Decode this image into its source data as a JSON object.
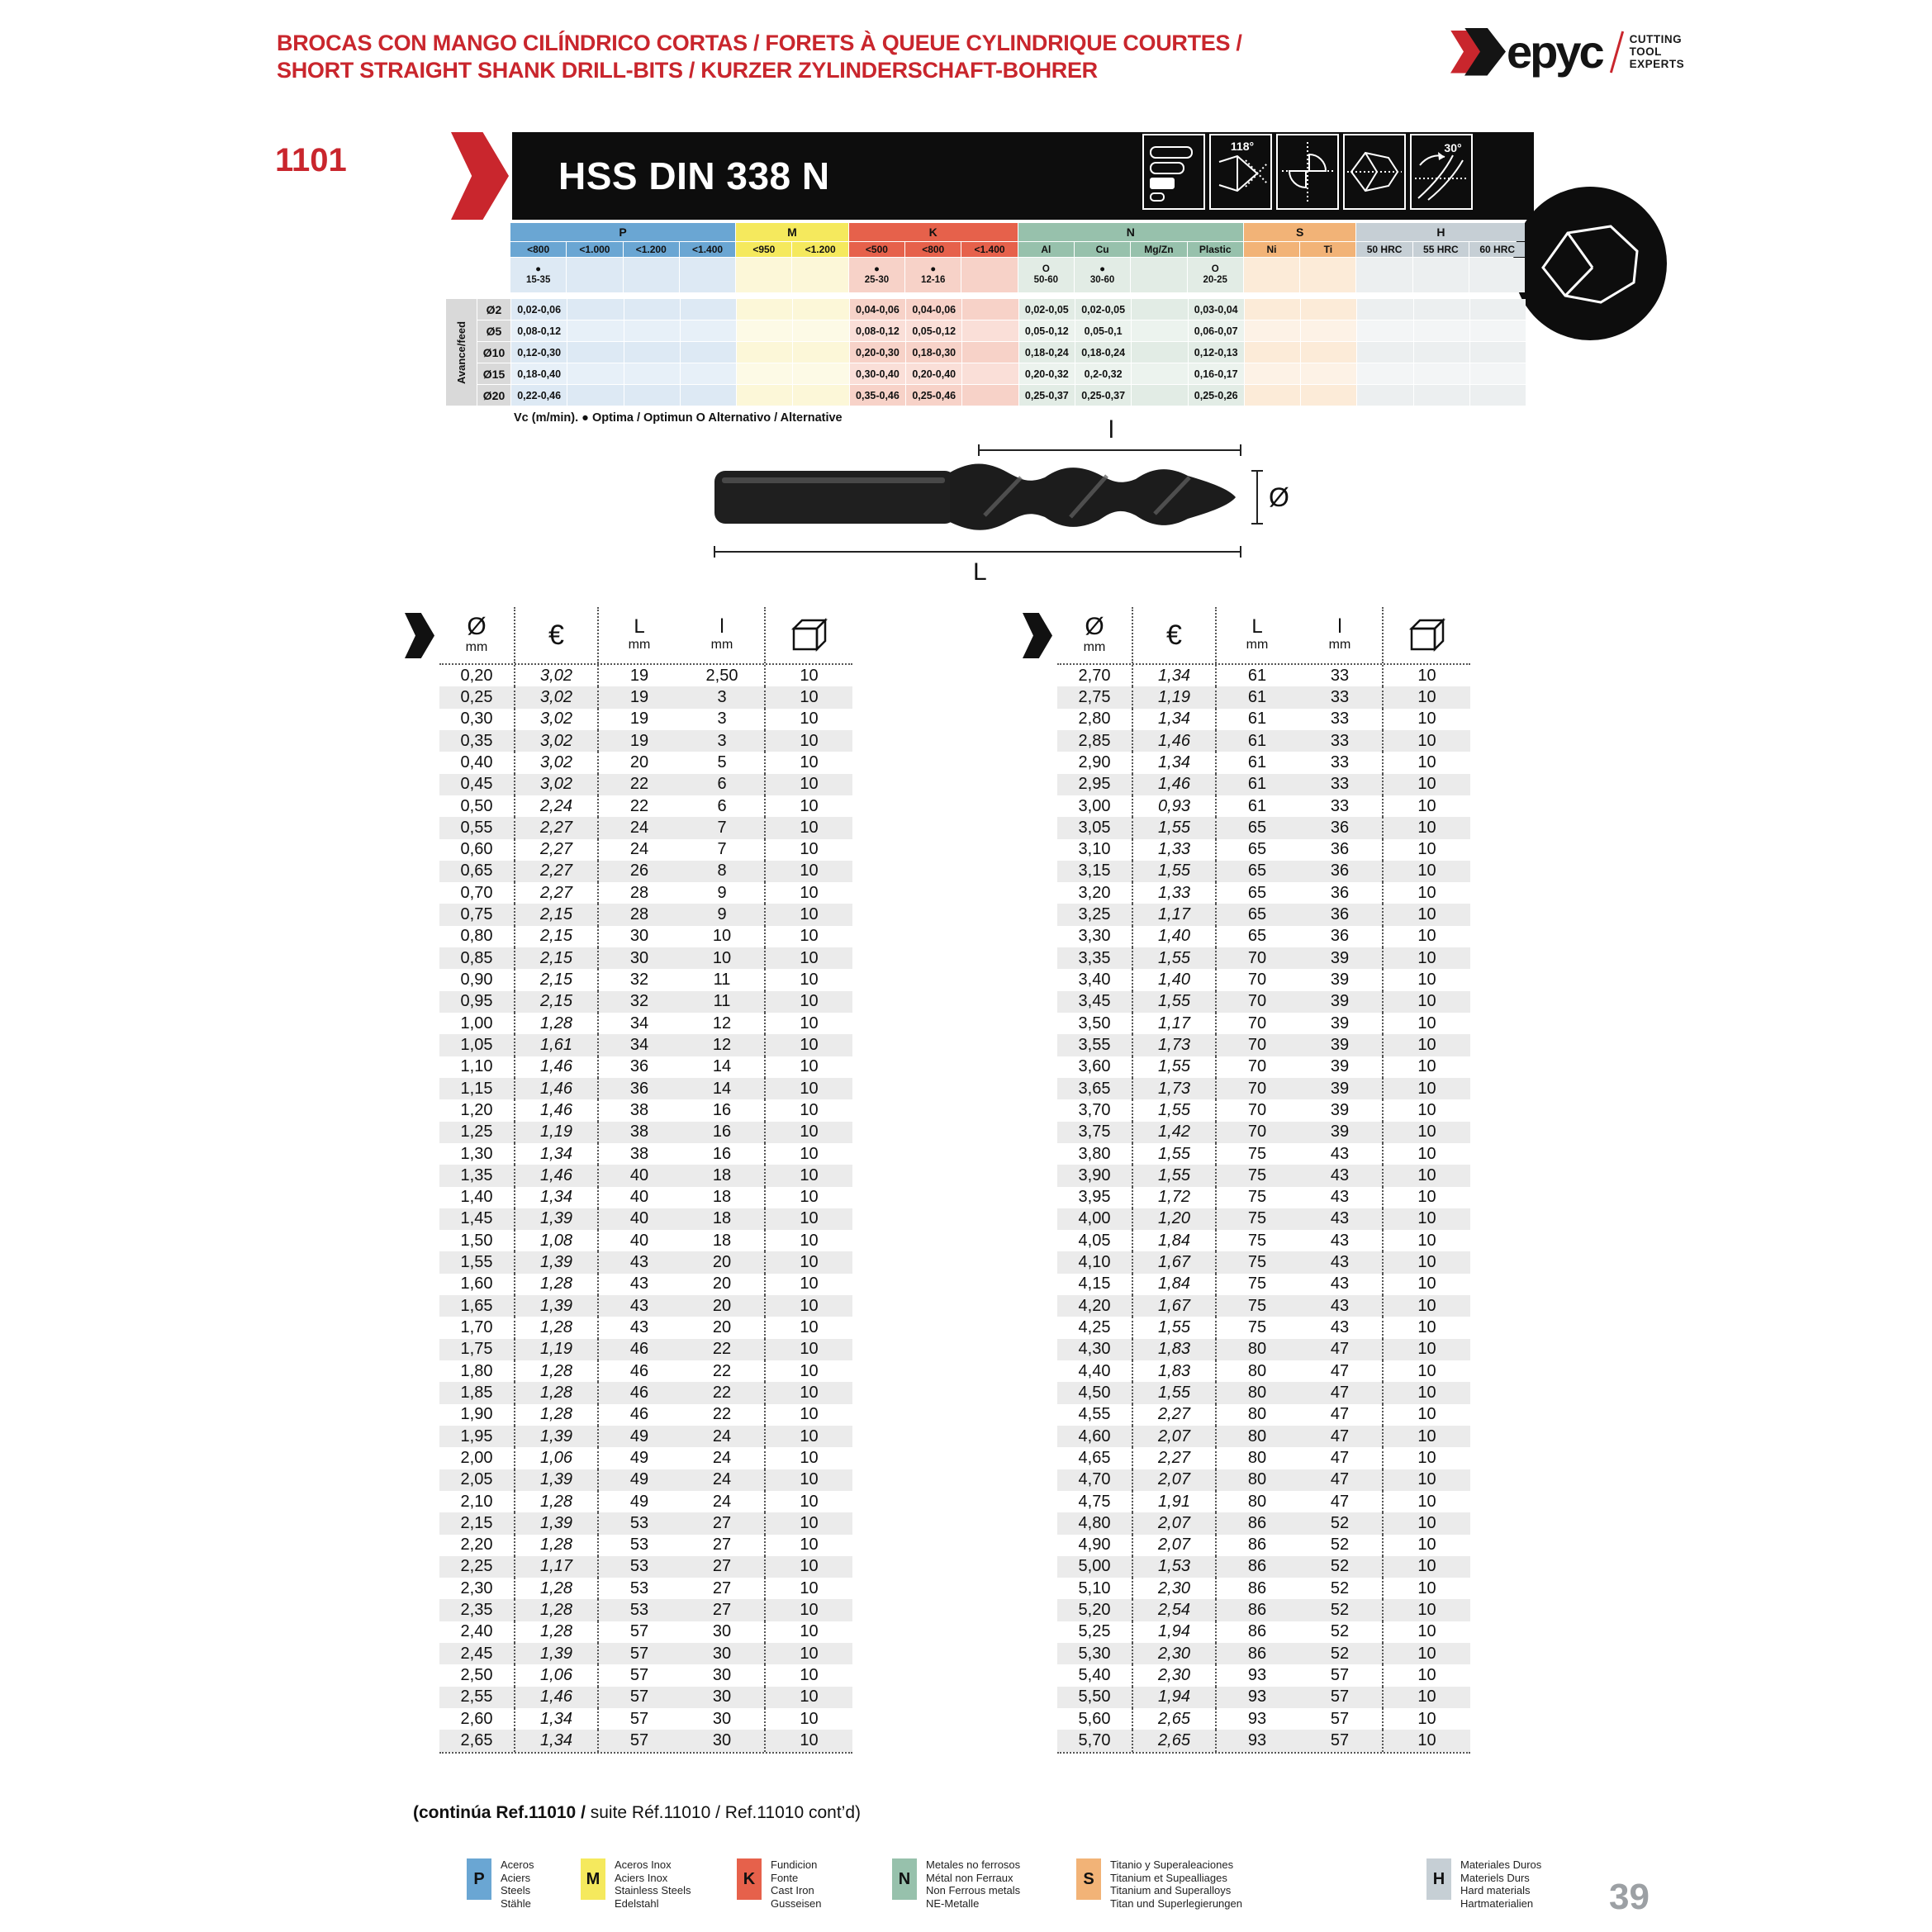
{
  "theme": {
    "accent": "#c9262d",
    "band_black": "#0d0d0d",
    "stripe": "#ebebeb",
    "page_number_color": "#9ca0a4"
  },
  "header": {
    "title_line1": "BROCAS CON MANGO CILÍNDRICO CORTAS / FORETS À QUEUE CYLINDRIQUE COURTES /",
    "title_line2": "SHORT STRAIGHT SHANK DRILL-BITS / KURZER ZYLINDERSCHAFT-BOHRER",
    "logo": {
      "brand": "Hepyc",
      "wordmark_tail": "epyc",
      "tagline": [
        "CUTTING",
        "TOOL",
        "EXPERTS"
      ]
    }
  },
  "product": {
    "ref": "1101",
    "name": "HSS DIN 338 N",
    "point_angle": "118°",
    "helix_angle": "30°"
  },
  "materials_table": {
    "groups": [
      {
        "label": "P",
        "span": 4,
        "header": "#6aa6d3",
        "cell": "#dde9f4",
        "alt": "#e7f0f8"
      },
      {
        "label": "M",
        "span": 2,
        "header": "#f5e95d",
        "cell": "#fcf7d8",
        "alt": "#fdfae6"
      },
      {
        "label": "K",
        "span": 3,
        "header": "#e6614b",
        "cell": "#f7d2c8",
        "alt": "#fadfd8"
      },
      {
        "label": "N",
        "span": 4,
        "header": "#97c1ac",
        "cell": "#e2ece5",
        "alt": "#ecf3ee"
      },
      {
        "label": "S",
        "span": 2,
        "header": "#f2b377",
        "cell": "#fcebd8",
        "alt": "#fdf2e6"
      },
      {
        "label": "H",
        "span": 3,
        "header": "#c6cfd5",
        "cell": "#eceff0",
        "alt": "#f3f5f6"
      }
    ],
    "columns": [
      "<800",
      "<1.000",
      "<1.200",
      "<1.400",
      "<950",
      "<1.200",
      "<500",
      "<800",
      "<1.400",
      "Al",
      "Cu",
      "Mg/Zn",
      "Plastic",
      "Ni",
      "Ti",
      "50 HRC",
      "55 HRC",
      "60 HRC"
    ],
    "vc_row": [
      {
        "s": "●",
        "v": "15-35"
      },
      null,
      null,
      null,
      null,
      null,
      {
        "s": "●",
        "v": "25-30"
      },
      {
        "s": "●",
        "v": "12-16"
      },
      null,
      {
        "s": "O",
        "v": "50-60"
      },
      {
        "s": "●",
        "v": "30-60"
      },
      null,
      {
        "s": "O",
        "v": "20-25"
      },
      null,
      null,
      null,
      null,
      null
    ],
    "feed_label": "Avance/feed",
    "feed_rows": [
      {
        "dia": "Ø2",
        "values": [
          "0,02-0,06",
          "",
          "",
          "",
          "",
          "",
          "0,04-0,06",
          "0,04-0,06",
          "",
          "0,02-0,05",
          "0,02-0,05",
          "",
          "0,03-0,04",
          "",
          "",
          "",
          "",
          ""
        ]
      },
      {
        "dia": "Ø5",
        "values": [
          "0,08-0,12",
          "",
          "",
          "",
          "",
          "",
          "0,08-0,12",
          "0,05-0,12",
          "",
          "0,05-0,12",
          "0,05-0,1",
          "",
          "0,06-0,07",
          "",
          "",
          "",
          "",
          ""
        ]
      },
      {
        "dia": "Ø10",
        "values": [
          "0,12-0,30",
          "",
          "",
          "",
          "",
          "",
          "0,20-0,30",
          "0,18-0,30",
          "",
          "0,18-0,24",
          "0,18-0,24",
          "",
          "0,12-0,13",
          "",
          "",
          "",
          "",
          ""
        ]
      },
      {
        "dia": "Ø15",
        "values": [
          "0,18-0,40",
          "",
          "",
          "",
          "",
          "",
          "0,30-0,40",
          "0,20-0,40",
          "",
          "0,20-0,32",
          "0,2-0,32",
          "",
          "0,16-0,17",
          "",
          "",
          "",
          "",
          ""
        ]
      },
      {
        "dia": "Ø20",
        "values": [
          "0,22-0,46",
          "",
          "",
          "",
          "",
          "",
          "0,35-0,46",
          "0,25-0,46",
          "",
          "0,25-0,37",
          "0,25-0,37",
          "",
          "0,25-0,26",
          "",
          "",
          "",
          "",
          ""
        ]
      }
    ],
    "footnote": "Vc (m/min). ● Optima / Optimun   O Alternativo / Alternative"
  },
  "diagram": {
    "l_label": "l",
    "L_label": "L",
    "dia_label": "Ø"
  },
  "price_tables": {
    "headers": {
      "dia_symbol": "Ø",
      "mm": "mm",
      "euro": "€",
      "L": "L",
      "l": "l"
    },
    "left_rows": [
      [
        "0,20",
        "3,02",
        "19",
        "2,50",
        "10"
      ],
      [
        "0,25",
        "3,02",
        "19",
        "3",
        "10"
      ],
      [
        "0,30",
        "3,02",
        "19",
        "3",
        "10"
      ],
      [
        "0,35",
        "3,02",
        "19",
        "3",
        "10"
      ],
      [
        "0,40",
        "3,02",
        "20",
        "5",
        "10"
      ],
      [
        "0,45",
        "3,02",
        "22",
        "6",
        "10"
      ],
      [
        "0,50",
        "2,24",
        "22",
        "6",
        "10"
      ],
      [
        "0,55",
        "2,27",
        "24",
        "7",
        "10"
      ],
      [
        "0,60",
        "2,27",
        "24",
        "7",
        "10"
      ],
      [
        "0,65",
        "2,27",
        "26",
        "8",
        "10"
      ],
      [
        "0,70",
        "2,27",
        "28",
        "9",
        "10"
      ],
      [
        "0,75",
        "2,15",
        "28",
        "9",
        "10"
      ],
      [
        "0,80",
        "2,15",
        "30",
        "10",
        "10"
      ],
      [
        "0,85",
        "2,15",
        "30",
        "10",
        "10"
      ],
      [
        "0,90",
        "2,15",
        "32",
        "11",
        "10"
      ],
      [
        "0,95",
        "2,15",
        "32",
        "11",
        "10"
      ],
      [
        "1,00",
        "1,28",
        "34",
        "12",
        "10"
      ],
      [
        "1,05",
        "1,61",
        "34",
        "12",
        "10"
      ],
      [
        "1,10",
        "1,46",
        "36",
        "14",
        "10"
      ],
      [
        "1,15",
        "1,46",
        "36",
        "14",
        "10"
      ],
      [
        "1,20",
        "1,46",
        "38",
        "16",
        "10"
      ],
      [
        "1,25",
        "1,19",
        "38",
        "16",
        "10"
      ],
      [
        "1,30",
        "1,34",
        "38",
        "16",
        "10"
      ],
      [
        "1,35",
        "1,46",
        "40",
        "18",
        "10"
      ],
      [
        "1,40",
        "1,34",
        "40",
        "18",
        "10"
      ],
      [
        "1,45",
        "1,39",
        "40",
        "18",
        "10"
      ],
      [
        "1,50",
        "1,08",
        "40",
        "18",
        "10"
      ],
      [
        "1,55",
        "1,39",
        "43",
        "20",
        "10"
      ],
      [
        "1,60",
        "1,28",
        "43",
        "20",
        "10"
      ],
      [
        "1,65",
        "1,39",
        "43",
        "20",
        "10"
      ],
      [
        "1,70",
        "1,28",
        "43",
        "20",
        "10"
      ],
      [
        "1,75",
        "1,19",
        "46",
        "22",
        "10"
      ],
      [
        "1,80",
        "1,28",
        "46",
        "22",
        "10"
      ],
      [
        "1,85",
        "1,28",
        "46",
        "22",
        "10"
      ],
      [
        "1,90",
        "1,28",
        "46",
        "22",
        "10"
      ],
      [
        "1,95",
        "1,39",
        "49",
        "24",
        "10"
      ],
      [
        "2,00",
        "1,06",
        "49",
        "24",
        "10"
      ],
      [
        "2,05",
        "1,39",
        "49",
        "24",
        "10"
      ],
      [
        "2,10",
        "1,28",
        "49",
        "24",
        "10"
      ],
      [
        "2,15",
        "1,39",
        "53",
        "27",
        "10"
      ],
      [
        "2,20",
        "1,28",
        "53",
        "27",
        "10"
      ],
      [
        "2,25",
        "1,17",
        "53",
        "27",
        "10"
      ],
      [
        "2,30",
        "1,28",
        "53",
        "27",
        "10"
      ],
      [
        "2,35",
        "1,28",
        "53",
        "27",
        "10"
      ],
      [
        "2,40",
        "1,28",
        "57",
        "30",
        "10"
      ],
      [
        "2,45",
        "1,39",
        "57",
        "30",
        "10"
      ],
      [
        "2,50",
        "1,06",
        "57",
        "30",
        "10"
      ],
      [
        "2,55",
        "1,46",
        "57",
        "30",
        "10"
      ],
      [
        "2,60",
        "1,34",
        "57",
        "30",
        "10"
      ],
      [
        "2,65",
        "1,34",
        "57",
        "30",
        "10"
      ]
    ],
    "right_rows": [
      [
        "2,70",
        "1,34",
        "61",
        "33",
        "10"
      ],
      [
        "2,75",
        "1,19",
        "61",
        "33",
        "10"
      ],
      [
        "2,80",
        "1,34",
        "61",
        "33",
        "10"
      ],
      [
        "2,85",
        "1,46",
        "61",
        "33",
        "10"
      ],
      [
        "2,90",
        "1,34",
        "61",
        "33",
        "10"
      ],
      [
        "2,95",
        "1,46",
        "61",
        "33",
        "10"
      ],
      [
        "3,00",
        "0,93",
        "61",
        "33",
        "10"
      ],
      [
        "3,05",
        "1,55",
        "65",
        "36",
        "10"
      ],
      [
        "3,10",
        "1,33",
        "65",
        "36",
        "10"
      ],
      [
        "3,15",
        "1,55",
        "65",
        "36",
        "10"
      ],
      [
        "3,20",
        "1,33",
        "65",
        "36",
        "10"
      ],
      [
        "3,25",
        "1,17",
        "65",
        "36",
        "10"
      ],
      [
        "3,30",
        "1,40",
        "65",
        "36",
        "10"
      ],
      [
        "3,35",
        "1,55",
        "70",
        "39",
        "10"
      ],
      [
        "3,40",
        "1,40",
        "70",
        "39",
        "10"
      ],
      [
        "3,45",
        "1,55",
        "70",
        "39",
        "10"
      ],
      [
        "3,50",
        "1,17",
        "70",
        "39",
        "10"
      ],
      [
        "3,55",
        "1,73",
        "70",
        "39",
        "10"
      ],
      [
        "3,60",
        "1,55",
        "70",
        "39",
        "10"
      ],
      [
        "3,65",
        "1,73",
        "70",
        "39",
        "10"
      ],
      [
        "3,70",
        "1,55",
        "70",
        "39",
        "10"
      ],
      [
        "3,75",
        "1,42",
        "70",
        "39",
        "10"
      ],
      [
        "3,80",
        "1,55",
        "75",
        "43",
        "10"
      ],
      [
        "3,90",
        "1,55",
        "75",
        "43",
        "10"
      ],
      [
        "3,95",
        "1,72",
        "75",
        "43",
        "10"
      ],
      [
        "4,00",
        "1,20",
        "75",
        "43",
        "10"
      ],
      [
        "4,05",
        "1,84",
        "75",
        "43",
        "10"
      ],
      [
        "4,10",
        "1,67",
        "75",
        "43",
        "10"
      ],
      [
        "4,15",
        "1,84",
        "75",
        "43",
        "10"
      ],
      [
        "4,20",
        "1,67",
        "75",
        "43",
        "10"
      ],
      [
        "4,25",
        "1,55",
        "75",
        "43",
        "10"
      ],
      [
        "4,30",
        "1,83",
        "80",
        "47",
        "10"
      ],
      [
        "4,40",
        "1,83",
        "80",
        "47",
        "10"
      ],
      [
        "4,50",
        "1,55",
        "80",
        "47",
        "10"
      ],
      [
        "4,55",
        "2,27",
        "80",
        "47",
        "10"
      ],
      [
        "4,60",
        "2,07",
        "80",
        "47",
        "10"
      ],
      [
        "4,65",
        "2,27",
        "80",
        "47",
        "10"
      ],
      [
        "4,70",
        "2,07",
        "80",
        "47",
        "10"
      ],
      [
        "4,75",
        "1,91",
        "80",
        "47",
        "10"
      ],
      [
        "4,80",
        "2,07",
        "86",
        "52",
        "10"
      ],
      [
        "4,90",
        "2,07",
        "86",
        "52",
        "10"
      ],
      [
        "5,00",
        "1,53",
        "86",
        "52",
        "10"
      ],
      [
        "5,10",
        "2,30",
        "86",
        "52",
        "10"
      ],
      [
        "5,20",
        "2,54",
        "86",
        "52",
        "10"
      ],
      [
        "5,25",
        "1,94",
        "86",
        "52",
        "10"
      ],
      [
        "5,30",
        "2,30",
        "86",
        "52",
        "10"
      ],
      [
        "5,40",
        "2,30",
        "93",
        "57",
        "10"
      ],
      [
        "5,50",
        "1,94",
        "93",
        "57",
        "10"
      ],
      [
        "5,60",
        "2,65",
        "93",
        "57",
        "10"
      ],
      [
        "5,70",
        "2,65",
        "93",
        "57",
        "10"
      ]
    ]
  },
  "continuation_note": {
    "bold": "(continúa Ref.11010 /",
    "rest": " suite Réf.11010 / Ref.11010 cont’d)"
  },
  "legend": [
    {
      "letter": "P",
      "color": "#6aa6d3",
      "lines": [
        "Aceros",
        "Aciers",
        "Steels",
        "Stähle"
      ]
    },
    {
      "letter": "M",
      "color": "#f5e95d",
      "lines": [
        "Aceros Inox",
        "Aciers Inox",
        "Stainless Steels",
        "Edelstahl"
      ]
    },
    {
      "letter": "K",
      "color": "#e6614b",
      "lines": [
        "Fundicion",
        "Fonte",
        "Cast Iron",
        "Gusseisen"
      ]
    },
    {
      "letter": "N",
      "color": "#97c1ac",
      "lines": [
        "Metales no ferrosos",
        "Métal non Ferraux",
        "Non Ferrous metals",
        "NE-Metalle"
      ]
    },
    {
      "letter": "S",
      "color": "#f2b377",
      "lines": [
        "Titanio y Superaleaciones",
        "Titanium et Supealliages",
        "Titanium and Superalloys",
        "Titan und Superlegierungen"
      ]
    },
    {
      "letter": "H",
      "color": "#c6cfd5",
      "lines": [
        "Materiales Duros",
        "Materiels Durs",
        "Hard materials",
        "Hartmaterialien"
      ]
    }
  ],
  "page_number": "39"
}
